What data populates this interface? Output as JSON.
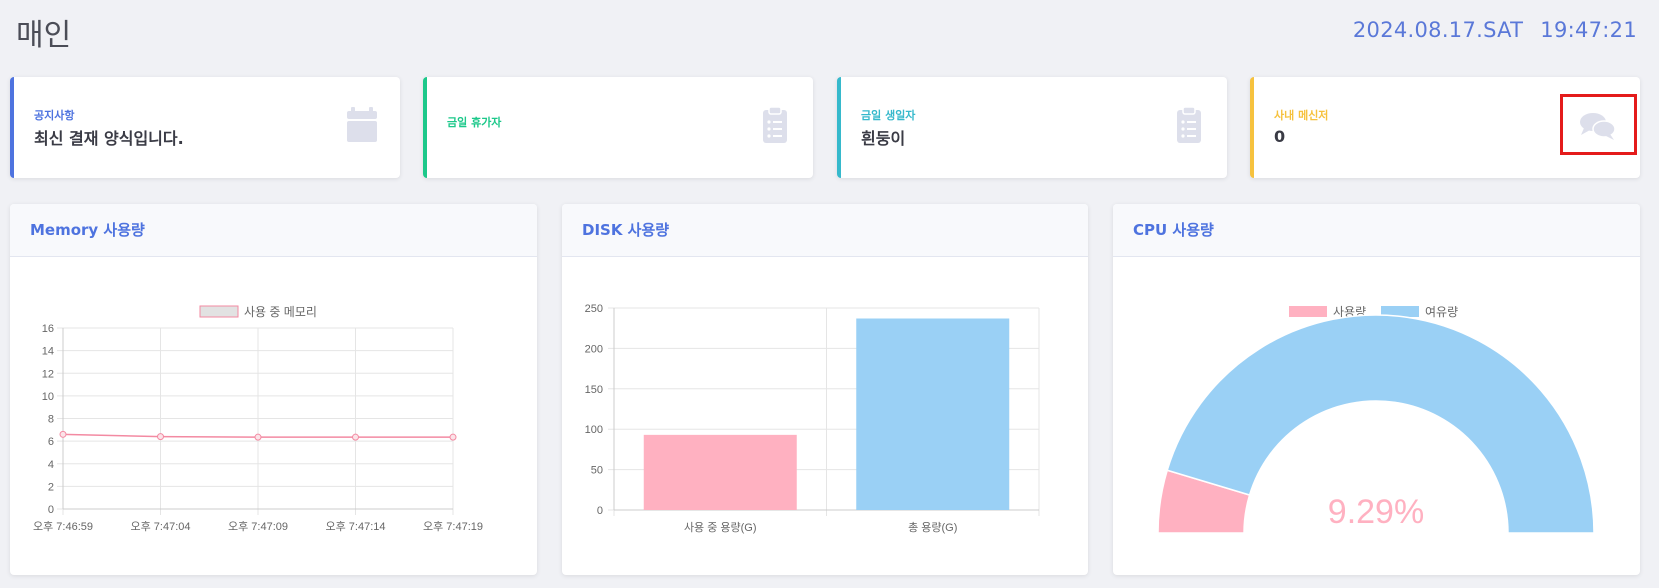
{
  "header": {
    "title": "매인",
    "date": "2024.08.17.SAT",
    "time": "19:47:21"
  },
  "cards": [
    {
      "label": "공지사항",
      "value": "최신 결재 양식입니다.",
      "icon": "calendar-icon",
      "color": "#4e73df"
    },
    {
      "label": "금일 휴가자",
      "value": "",
      "icon": "clipboard-icon",
      "color": "#1cc88a"
    },
    {
      "label": "금일 생일자",
      "value": "흰둥이",
      "icon": "clipboard-icon",
      "color": "#36b9cc"
    },
    {
      "label": "사내 메신저",
      "value": "0",
      "icon": "comments-icon",
      "color": "#f6c23e"
    }
  ],
  "panels": {
    "memory": {
      "title": "Memory 사용량"
    },
    "disk": {
      "title": "DISK 사용량"
    },
    "cpu": {
      "title": "CPU 사용량"
    }
  },
  "chart_data": [
    {
      "type": "line",
      "legend": [
        "사용 중 메모리"
      ],
      "x": [
        "오후 7:46:59",
        "오후 7:47:04",
        "오후 7:47:09",
        "오후 7:47:14",
        "오후 7:47:19"
      ],
      "series": [
        {
          "name": "사용 중 메모리",
          "values": [
            6.6,
            6.4,
            6.35,
            6.35,
            6.35
          ]
        }
      ],
      "ylim": [
        0,
        16
      ],
      "yticks": [
        0,
        2,
        4,
        6,
        8,
        10,
        12,
        14,
        16
      ],
      "colors": {
        "line": "#f38aa2",
        "fill": "#e2e2e2"
      },
      "grid": true,
      "legend_position": "top"
    },
    {
      "type": "bar",
      "categories": [
        "사용 중 용량(G)",
        "총 용량(G)"
      ],
      "values": [
        93,
        237
      ],
      "ylim": [
        0,
        250
      ],
      "yticks": [
        0,
        50,
        100,
        150,
        200,
        250
      ],
      "colors": [
        "#ffb1c1",
        "#9ad0f5"
      ],
      "grid": true
    },
    {
      "type": "pie",
      "variant": "half-doughnut",
      "categories": [
        "사용량",
        "여유량"
      ],
      "values": [
        9.29,
        90.71
      ],
      "center_label": "9.29%",
      "colors": [
        "#ffb1c1",
        "#9ad0f5"
      ],
      "legend_position": "top"
    }
  ]
}
